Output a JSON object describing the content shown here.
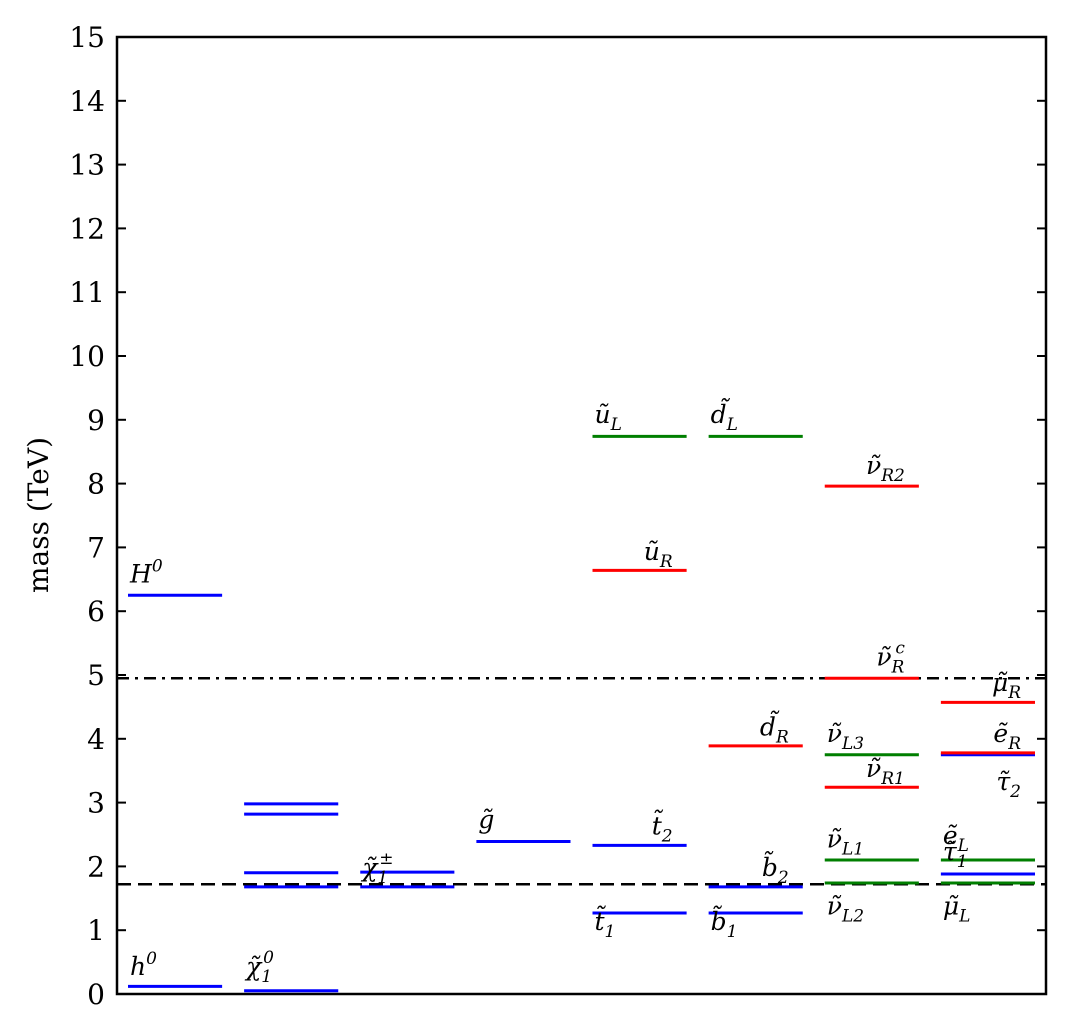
{
  "chart_data": {
    "type": "level-diagram",
    "ylabel": "mass (TeV)",
    "xlabel": "",
    "ylim": [
      0,
      15
    ],
    "y_ticks": [
      "0",
      "1",
      "2",
      "3",
      "4",
      "5",
      "6",
      "7",
      "8",
      "9",
      "10",
      "11",
      "12",
      "13",
      "14",
      "15"
    ],
    "columns": 8,
    "colors": {
      "blue": "#0000ff",
      "green": "#007f00",
      "red": "#ff0000",
      "black": "#000000"
    },
    "reference_lines": [
      {
        "name": "dashed-reference",
        "value": 1.72,
        "style": "dashed"
      },
      {
        "name": "dashdot-reference",
        "value": 4.95,
        "style": "dashdot"
      }
    ],
    "levels": [
      {
        "column": 0,
        "value": 0.12,
        "color": "blue"
      },
      {
        "column": 0,
        "value": 6.25,
        "color": "blue"
      },
      {
        "column": 1,
        "value": 0.05,
        "color": "blue"
      },
      {
        "column": 1,
        "value": 1.68,
        "color": "blue"
      },
      {
        "column": 1,
        "value": 1.9,
        "color": "blue"
      },
      {
        "column": 1,
        "value": 2.82,
        "color": "blue"
      },
      {
        "column": 1,
        "value": 2.98,
        "color": "blue"
      },
      {
        "column": 2,
        "value": 1.68,
        "color": "blue"
      },
      {
        "column": 2,
        "value": 1.91,
        "color": "blue"
      },
      {
        "column": 3,
        "value": 2.39,
        "color": "blue"
      },
      {
        "column": 4,
        "value": 1.27,
        "color": "blue"
      },
      {
        "column": 4,
        "value": 2.33,
        "color": "blue"
      },
      {
        "column": 4,
        "value": 6.64,
        "color": "red"
      },
      {
        "column": 4,
        "value": 8.74,
        "color": "green"
      },
      {
        "column": 5,
        "value": 1.27,
        "color": "blue"
      },
      {
        "column": 5,
        "value": 1.68,
        "color": "blue"
      },
      {
        "column": 5,
        "value": 3.89,
        "color": "red"
      },
      {
        "column": 5,
        "value": 8.74,
        "color": "green"
      },
      {
        "column": 6,
        "value": 1.74,
        "color": "green"
      },
      {
        "column": 6,
        "value": 2.1,
        "color": "green"
      },
      {
        "column": 6,
        "value": 3.24,
        "color": "red"
      },
      {
        "column": 6,
        "value": 3.75,
        "color": "green"
      },
      {
        "column": 6,
        "value": 4.95,
        "color": "red"
      },
      {
        "column": 6,
        "value": 7.96,
        "color": "red"
      },
      {
        "column": 7,
        "value": 1.74,
        "color": "green"
      },
      {
        "column": 7,
        "value": 1.88,
        "color": "blue"
      },
      {
        "column": 7,
        "value": 2.1,
        "color": "green"
      },
      {
        "column": 7,
        "value": 3.75,
        "color": "blue"
      },
      {
        "column": 7,
        "value": 3.78,
        "color": "red"
      },
      {
        "column": 7,
        "value": 4.57,
        "color": "red"
      }
    ],
    "labels": [
      {
        "text": "h",
        "sup": "0",
        "column": 0,
        "value": 0.3,
        "align": "left"
      },
      {
        "text": "H",
        "sup": "0",
        "column": 0,
        "value": 6.45,
        "align": "left"
      },
      {
        "text": "χ̃",
        "sub": "1",
        "sup": "0",
        "column": 1,
        "value": 0.3,
        "align": "left"
      },
      {
        "text": "χ̃",
        "sub": "1",
        "sup": "±",
        "column": 2,
        "value": 1.85,
        "align": "left"
      },
      {
        "text": "g̃",
        "column": 3,
        "value": 2.6,
        "align": "left"
      },
      {
        "text": "t̃",
        "sub": "1",
        "column": 4,
        "value": 1.0,
        "align": "left"
      },
      {
        "text": "t̃",
        "sub": "2",
        "column": 4,
        "value": 2.5,
        "align": "right"
      },
      {
        "text": "ũ",
        "sub": "R",
        "column": 4,
        "value": 6.8,
        "align": "right"
      },
      {
        "text": "ũ",
        "sub": "L",
        "column": 4,
        "value": 8.95,
        "align": "left"
      },
      {
        "text": "b̃",
        "sub": "1",
        "column": 5,
        "value": 1.0,
        "align": "left"
      },
      {
        "text": "b̃",
        "sub": "2",
        "column": 5,
        "value": 1.85,
        "align": "right"
      },
      {
        "text": "d̃",
        "sub": "R",
        "column": 5,
        "value": 4.05,
        "align": "right"
      },
      {
        "text": "d̃",
        "sub": "L",
        "column": 5,
        "value": 8.95,
        "align": "left"
      },
      {
        "text": "ν̃",
        "sub": "L2",
        "column": 6,
        "value": 1.25,
        "align": "left"
      },
      {
        "text": "ν̃",
        "sub": "L1",
        "column": 6,
        "value": 2.3,
        "align": "left"
      },
      {
        "text": "ν̃",
        "sub": "R1",
        "column": 6,
        "value": 3.4,
        "align": "right"
      },
      {
        "text": "ν̃",
        "sub": "L3",
        "column": 6,
        "value": 3.95,
        "align": "left"
      },
      {
        "text": "ν̃",
        "sub": "R",
        "sup": "c",
        "column": 6,
        "value": 5.15,
        "align": "right"
      },
      {
        "text": "ν̃",
        "sub": "R2",
        "column": 6,
        "value": 8.15,
        "align": "right"
      },
      {
        "text": "μ̃",
        "sub": "L",
        "column": 7,
        "value": 1.25,
        "align": "left"
      },
      {
        "text": "τ̃",
        "sub": "1",
        "column": 7,
        "value": 2.1,
        "align": "left"
      },
      {
        "text": "ẽ",
        "sub": "L",
        "column": 7,
        "value": 2.35,
        "align": "left"
      },
      {
        "text": "τ̃",
        "sub": "2",
        "column": 7,
        "value": 3.2,
        "align": "right"
      },
      {
        "text": "ẽ",
        "sub": "R",
        "column": 7,
        "value": 3.95,
        "align": "right"
      },
      {
        "text": "μ̃",
        "sub": "R",
        "column": 7,
        "value": 4.75,
        "align": "right"
      }
    ]
  }
}
